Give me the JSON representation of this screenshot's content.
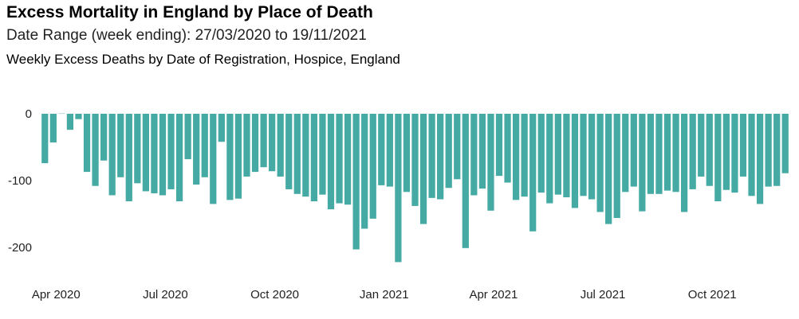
{
  "title": "Excess Mortality in England by Place of Death",
  "subtitle": "Date Range (week ending): 27/03/2020 to 19/11/2021",
  "chart_data": {
    "type": "bar",
    "title": "Weekly Excess Deaths by Date of Registration, Hospice, England",
    "xlabel": "",
    "ylabel": "",
    "ylim": [
      -240,
      5
    ],
    "yticks": [
      0,
      -100,
      -200
    ],
    "ytick_labels": [
      "0",
      "-100",
      "-200"
    ],
    "xticks": [
      {
        "label": "Apr 2020",
        "index": 0.5
      },
      {
        "label": "Jul 2020",
        "index": 13.5
      },
      {
        "label": "Oct 2020",
        "index": 26.5
      },
      {
        "label": "Jan 2021",
        "index": 39.5
      },
      {
        "label": "Apr 2021",
        "index": 52.5
      },
      {
        "label": "Jul 2021",
        "index": 65.5
      },
      {
        "label": "Oct 2021",
        "index": 78.5
      }
    ],
    "grid": false,
    "bar_color": "#45aaa3",
    "series": [
      {
        "values": [
          -74,
          -43,
          1,
          -24,
          -8,
          -87,
          -108,
          -70,
          -122,
          -95,
          -131,
          -104,
          -116,
          -119,
          -122,
          -113,
          -131,
          -68,
          -106,
          -95,
          -135,
          -42,
          -129,
          -127,
          -94,
          -87,
          -80,
          -86,
          -94,
          -113,
          -120,
          -124,
          -131,
          -121,
          -143,
          -134,
          -136,
          -203,
          -172,
          -157,
          -107,
          -109,
          -222,
          -117,
          -138,
          -165,
          -126,
          -128,
          -111,
          -98,
          -201,
          -122,
          -112,
          -145,
          -93,
          -103,
          -129,
          -124,
          -176,
          -118,
          -134,
          -121,
          -125,
          -141,
          -123,
          -128,
          -147,
          -165,
          -156,
          -117,
          -109,
          -146,
          -120,
          -120,
          -115,
          -117,
          -147,
          -113,
          -94,
          -108,
          -131,
          -114,
          -118,
          -94,
          -123,
          -135,
          -109,
          -108,
          -89
        ]
      }
    ]
  }
}
